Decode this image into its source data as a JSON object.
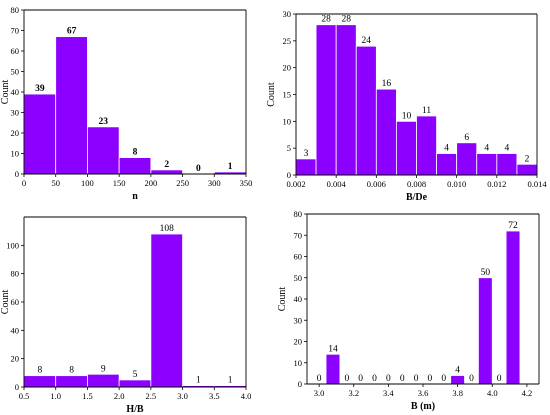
{
  "palette": {
    "bar_fill": "#8b00ff",
    "bar_stroke": "#ffffff",
    "axis": "#000000"
  },
  "chart_data": [
    {
      "type": "bar",
      "xlabel": "n",
      "ylabel": "Count",
      "xlim": [
        0,
        350
      ],
      "ylim": [
        0,
        80
      ],
      "xticks": [
        0,
        50,
        100,
        150,
        200,
        250,
        300,
        350
      ],
      "yticks": [
        0,
        10,
        20,
        30,
        40,
        50,
        60,
        70,
        80
      ],
      "bars": [
        {
          "x0": 0,
          "x1": 50,
          "value": 39
        },
        {
          "x0": 50,
          "x1": 100,
          "value": 67
        },
        {
          "x0": 100,
          "x1": 150,
          "value": 23
        },
        {
          "x0": 150,
          "x1": 200,
          "value": 8
        },
        {
          "x0": 200,
          "x1": 250,
          "value": 2
        },
        {
          "x0": 250,
          "x1": 300,
          "value": 0
        },
        {
          "x0": 300,
          "x1": 350,
          "value": 1
        }
      ],
      "label_style": "bold"
    },
    {
      "type": "bar",
      "xlabel": "B/De",
      "ylabel": "Count",
      "xlim": [
        0.002,
        0.014
      ],
      "ylim": [
        0,
        30
      ],
      "xticks": [
        "0.002",
        "0.004",
        "0.006",
        "0.008",
        "0.010",
        "0.012",
        "0.014"
      ],
      "yticks": [
        0,
        5,
        10,
        15,
        20,
        25,
        30
      ],
      "bars": [
        {
          "x0": 0.002,
          "x1": 0.003,
          "value": 3
        },
        {
          "x0": 0.003,
          "x1": 0.004,
          "value": 28
        },
        {
          "x0": 0.004,
          "x1": 0.005,
          "value": 28
        },
        {
          "x0": 0.005,
          "x1": 0.006,
          "value": 24
        },
        {
          "x0": 0.006,
          "x1": 0.007,
          "value": 16
        },
        {
          "x0": 0.007,
          "x1": 0.008,
          "value": 10
        },
        {
          "x0": 0.008,
          "x1": 0.009,
          "value": 11
        },
        {
          "x0": 0.009,
          "x1": 0.01,
          "value": 4
        },
        {
          "x0": 0.01,
          "x1": 0.011,
          "value": 6
        },
        {
          "x0": 0.011,
          "x1": 0.012,
          "value": 4
        },
        {
          "x0": 0.012,
          "x1": 0.013,
          "value": 4
        },
        {
          "x0": 0.013,
          "x1": 0.014,
          "value": 2
        }
      ],
      "label_style": "normal"
    },
    {
      "type": "bar",
      "xlabel": "H/B",
      "ylabel": "Count",
      "xlim": [
        0.5,
        4.0
      ],
      "ylim": [
        0,
        120
      ],
      "xticks": [
        "0.5",
        "1.0",
        "1.5",
        "2.0",
        "2.5",
        "3.0",
        "3.5",
        "4.0"
      ],
      "yticks": [
        0,
        20,
        40,
        60,
        80,
        100
      ],
      "bars": [
        {
          "x0": 0.5,
          "x1": 1.0,
          "value": 8
        },
        {
          "x0": 1.0,
          "x1": 1.5,
          "value": 8
        },
        {
          "x0": 1.5,
          "x1": 2.0,
          "value": 9
        },
        {
          "x0": 2.0,
          "x1": 2.5,
          "value": 5
        },
        {
          "x0": 2.5,
          "x1": 3.0,
          "value": 108
        },
        {
          "x0": 3.0,
          "x1": 3.5,
          "value": 1
        },
        {
          "x0": 3.5,
          "x1": 4.0,
          "value": 1
        }
      ],
      "label_style": "normal"
    },
    {
      "type": "bar",
      "xlabel": "B (m)",
      "ylabel": "Count",
      "xlim": [
        2.93,
        4.27
      ],
      "ylim": [
        0,
        80
      ],
      "xticks": [
        "3.0",
        "3.2",
        "3.4",
        "3.6",
        "3.8",
        "4.0",
        "4.2"
      ],
      "yticks": [
        0,
        10,
        20,
        30,
        40,
        50,
        60,
        70,
        80
      ],
      "bars": [
        {
          "x0": 2.96,
          "x1": 3.04,
          "value": 0,
          "show_bar": false
        },
        {
          "x0": 3.04,
          "x1": 3.12,
          "value": 14,
          "show_bar": true
        },
        {
          "x0": 3.12,
          "x1": 3.2,
          "value": 0,
          "show_bar": false
        },
        {
          "x0": 3.2,
          "x1": 3.28,
          "value": 0,
          "show_bar": false
        },
        {
          "x0": 3.28,
          "x1": 3.36,
          "value": 0,
          "show_bar": false
        },
        {
          "x0": 3.36,
          "x1": 3.44,
          "value": 0,
          "show_bar": false
        },
        {
          "x0": 3.44,
          "x1": 3.52,
          "value": 0,
          "show_bar": false
        },
        {
          "x0": 3.52,
          "x1": 3.6,
          "value": 0,
          "show_bar": false
        },
        {
          "x0": 3.6,
          "x1": 3.68,
          "value": 0,
          "show_bar": false
        },
        {
          "x0": 3.68,
          "x1": 3.76,
          "value": 0,
          "show_bar": false
        },
        {
          "x0": 3.76,
          "x1": 3.84,
          "value": 4,
          "show_bar": true
        },
        {
          "x0": 3.84,
          "x1": 3.92,
          "value": 0,
          "show_bar": false
        },
        {
          "x0": 3.92,
          "x1": 4.0,
          "value": 50,
          "show_bar": true
        },
        {
          "x0": 4.0,
          "x1": 4.08,
          "value": 0,
          "show_bar": false
        },
        {
          "x0": 4.08,
          "x1": 4.16,
          "value": 72,
          "show_bar": true
        }
      ],
      "label_style": "normal"
    }
  ]
}
